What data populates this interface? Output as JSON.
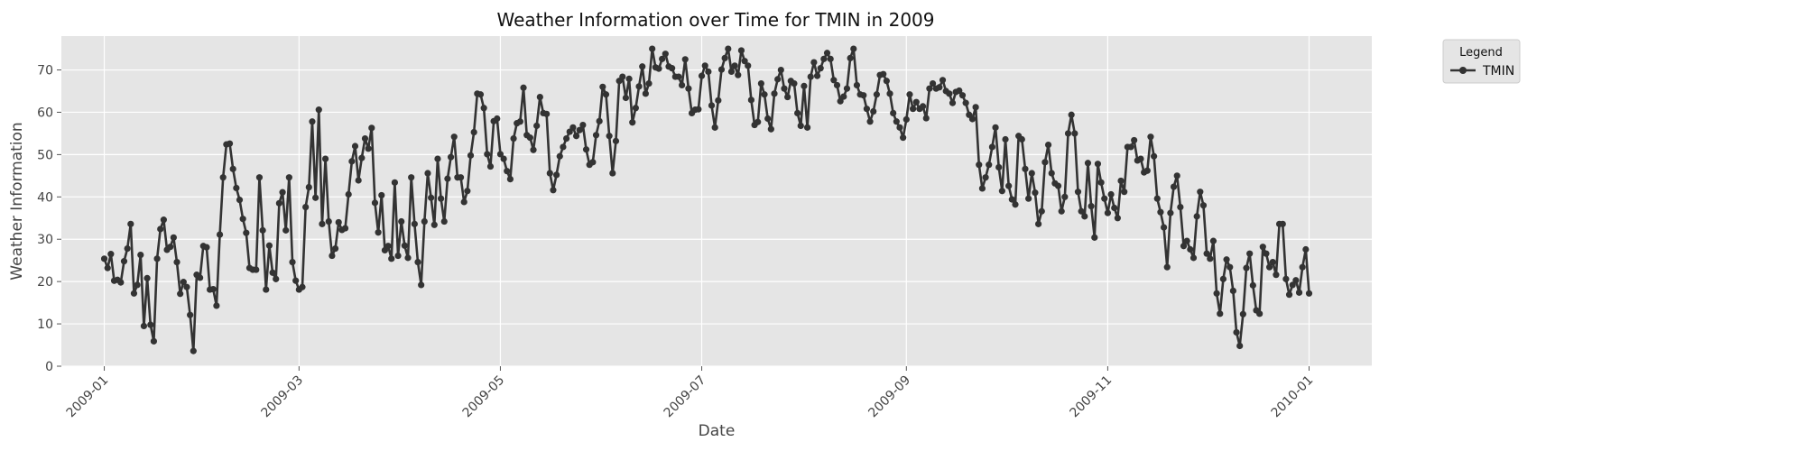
{
  "chart_data": {
    "type": "line",
    "title": "Weather Information over Time for TMIN in 2009",
    "xlabel": "Date",
    "ylabel": "Weather Information",
    "ylim": [
      0,
      78
    ],
    "y_ticks": [
      0,
      10,
      20,
      30,
      40,
      50,
      60,
      70
    ],
    "x_range_days": [
      -13,
      384
    ],
    "x_ticks": [
      {
        "label": "2009-01",
        "day": 0
      },
      {
        "label": "2009-03",
        "day": 59
      },
      {
        "label": "2009-05",
        "day": 120
      },
      {
        "label": "2009-07",
        "day": 181
      },
      {
        "label": "2009-09",
        "day": 243
      },
      {
        "label": "2009-11",
        "day": 304
      },
      {
        "label": "2010-01",
        "day": 365
      }
    ],
    "grid": true,
    "legend": {
      "title": "Legend",
      "placement": "outside-top-right"
    },
    "colors": {
      "plot_bg": "#e5e5e5",
      "grid": "#ffffff",
      "series": "#333333"
    },
    "start_date": "2009-01-01",
    "step_days": 1,
    "series": [
      {
        "name": "TMIN",
        "values": [
          25.4,
          23.2,
          26.5,
          20.2,
          20.4,
          19.8,
          24.8,
          27.8,
          33.6,
          17.2,
          19.2,
          26.3,
          9.5,
          20.8,
          9.8,
          5.9,
          25.4,
          32.4,
          34.6,
          27.5,
          28.2,
          30.4,
          24.6,
          17.1,
          19.9,
          18.7,
          12.1,
          3.6,
          21.6,
          20.9,
          28.4,
          28.1,
          18.1,
          18.2,
          14.3,
          31.1,
          44.6,
          52.4,
          52.6,
          46.6,
          42.1,
          39.3,
          34.8,
          31.5,
          23.2,
          22.8,
          22.8,
          44.6,
          32.1,
          18.1,
          28.5,
          22.1,
          20.6,
          38.5,
          41.1,
          32.1,
          44.6,
          24.6,
          20.2,
          18.1,
          18.7,
          37.6,
          42.3,
          57.8,
          39.8,
          60.6,
          33.6,
          49.0,
          34.2,
          26.1,
          27.8,
          34.0,
          32.2,
          32.6,
          40.6,
          48.4,
          52.0,
          43.9,
          49.2,
          53.8,
          51.4,
          56.3,
          38.6,
          31.6,
          40.4,
          27.4,
          28.4,
          25.4,
          43.4,
          26.1,
          34.2,
          28.5,
          25.6,
          44.6,
          33.6,
          24.6,
          19.2,
          34.2,
          45.6,
          39.8,
          33.4,
          49.0,
          39.6,
          34.2,
          44.3,
          49.4,
          54.2,
          44.6,
          44.6,
          38.8,
          41.4,
          49.8,
          55.3,
          64.4,
          64.2,
          61.0,
          50.1,
          47.2,
          57.9,
          58.5,
          50.1,
          49.0,
          46.1,
          44.2,
          53.8,
          57.4,
          57.8,
          65.8,
          54.6,
          54.0,
          51.1,
          56.8,
          63.6,
          59.8,
          59.6,
          45.6,
          41.6,
          45.2,
          49.6,
          51.8,
          53.8,
          55.4,
          56.4,
          54.4,
          55.8,
          57.0,
          51.2,
          47.6,
          48.2,
          54.6,
          57.9,
          66.0,
          64.2,
          54.4,
          45.6,
          53.2,
          67.4,
          68.4,
          63.4,
          67.9,
          57.6,
          61.0,
          66.1,
          70.8,
          64.4,
          66.8,
          75.0,
          70.6,
          70.3,
          72.6,
          73.8,
          70.8,
          70.4,
          68.4,
          68.4,
          66.4,
          72.5,
          65.6,
          59.8,
          60.6,
          60.7,
          68.6,
          71.0,
          69.6,
          61.6,
          56.4,
          62.8,
          70.1,
          72.8,
          75.0,
          69.6,
          71.0,
          68.8,
          74.6,
          72.1,
          71.0,
          62.9,
          57.0,
          57.7,
          66.8,
          64.2,
          58.5,
          56.0,
          64.4,
          67.8,
          70.0,
          65.6,
          63.6,
          67.4,
          66.8,
          59.8,
          56.8,
          66.2,
          56.4,
          68.4,
          71.8,
          68.6,
          70.4,
          72.6,
          74.0,
          72.6,
          67.6,
          66.4,
          62.6,
          63.7,
          65.6,
          72.8,
          75.0,
          66.4,
          64.2,
          64.0,
          60.8,
          57.8,
          60.2,
          64.2,
          68.8,
          69.0,
          67.4,
          64.4,
          59.8,
          57.8,
          56.4,
          54.0,
          58.3,
          64.2,
          60.8,
          62.4,
          60.8,
          61.4,
          58.6,
          65.6,
          66.8,
          65.6,
          65.9,
          67.6,
          65.0,
          64.4,
          62.2,
          64.8,
          65.1,
          64.0,
          62.2,
          59.4,
          58.4,
          61.2,
          47.6,
          42.0,
          44.6,
          47.6,
          51.8,
          56.4,
          47.0,
          41.4,
          53.6,
          42.6,
          39.4,
          38.2,
          54.4,
          53.6,
          46.6,
          39.6,
          45.6,
          41.0,
          33.6,
          36.6,
          48.2,
          52.3,
          45.6,
          43.2,
          42.6,
          36.6,
          40.0,
          55.0,
          59.4,
          55.0,
          41.2,
          36.6,
          35.4,
          48.0,
          37.8,
          30.4,
          47.8,
          43.4,
          39.6,
          36.2,
          40.6,
          37.4,
          35.0,
          43.8,
          41.2,
          51.8,
          51.8,
          53.4,
          48.6,
          49.0,
          45.8,
          46.2,
          54.2,
          49.6,
          39.6,
          36.4,
          32.8,
          23.4,
          36.2,
          42.4,
          45.0,
          37.6,
          28.4,
          29.6,
          27.6,
          25.6,
          35.4,
          41.2,
          38.0,
          26.6,
          25.4,
          29.6,
          17.2,
          12.4,
          20.6,
          25.2,
          23.4,
          17.8,
          8.0,
          4.8,
          12.3,
          23.2,
          26.6,
          19.1,
          13.2,
          12.4,
          28.2,
          26.6,
          23.4,
          24.6,
          21.6,
          33.6,
          33.6,
          20.6,
          16.9,
          19.2,
          20.3,
          17.4,
          23.4,
          27.6,
          17.2
        ]
      }
    ]
  }
}
